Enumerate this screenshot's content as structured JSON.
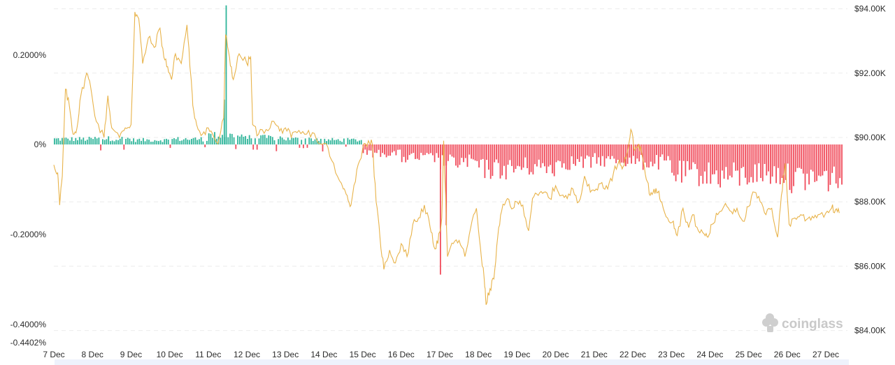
{
  "chart_data": {
    "type": "bar+line",
    "x_categories": [
      "7 Dec",
      "8 Dec",
      "9 Dec",
      "10 Dec",
      "11 Dec",
      "12 Dec",
      "13 Dec",
      "14 Dec",
      "15 Dec",
      "16 Dec",
      "17 Dec",
      "18 Dec",
      "19 Dec",
      "20 Dec",
      "21 Dec",
      "22 Dec",
      "23 Dec",
      "24 Dec",
      "25 Dec",
      "26 Dec",
      "27 Dec"
    ],
    "left_axis": {
      "ticks": [
        "0.2000%",
        "0%",
        "-0.2000%",
        "-0.4000%",
        "-0.4402%"
      ],
      "tick_values": [
        0.2,
        0,
        -0.2,
        -0.4,
        -0.4402
      ],
      "range": [
        -0.4402,
        0.31
      ]
    },
    "right_axis": {
      "ticks": [
        "$94.00K",
        "$92.00K",
        "$90.00K",
        "$88.00K",
        "$86.00K",
        "$84.00K"
      ],
      "tick_values": [
        94000,
        92000,
        90000,
        88000,
        86000,
        84000
      ],
      "range": [
        83650,
        94200
      ]
    },
    "funding_rate_series": {
      "positive_color": "#2fb59a",
      "negative_color": "#f14c5c",
      "daily_typical_percent": [
        0.012,
        0.013,
        0.01,
        0.012,
        0.02,
        0.015,
        0.012,
        0.01,
        -0.02,
        -0.03,
        -0.04,
        -0.055,
        -0.05,
        -0.04,
        -0.035,
        -0.04,
        -0.065,
        -0.07,
        -0.065,
        -0.075,
        -0.075
      ],
      "spikes": [
        {
          "x": 4.45,
          "percent": 0.31
        },
        {
          "x": 4.4,
          "percent": 0.1
        },
        {
          "x": 10.0,
          "percent": -0.29
        },
        {
          "x": 10.15,
          "percent": -0.18
        }
      ]
    },
    "price_series": {
      "color": "#e8b34a",
      "points": [
        [
          0.0,
          89150
        ],
        [
          0.1,
          88900
        ],
        [
          0.15,
          87900
        ],
        [
          0.22,
          88800
        ],
        [
          0.3,
          91500
        ],
        [
          0.4,
          91000
        ],
        [
          0.5,
          90100
        ],
        [
          0.6,
          90300
        ],
        [
          0.7,
          91300
        ],
        [
          0.85,
          92000
        ],
        [
          0.95,
          91600
        ],
        [
          1.1,
          90500
        ],
        [
          1.3,
          90000
        ],
        [
          1.4,
          91300
        ],
        [
          1.5,
          90300
        ],
        [
          1.7,
          90000
        ],
        [
          1.85,
          90300
        ],
        [
          2.0,
          90400
        ],
        [
          2.1,
          93900
        ],
        [
          2.2,
          93700
        ],
        [
          2.3,
          92300
        ],
        [
          2.45,
          93100
        ],
        [
          2.6,
          92800
        ],
        [
          2.75,
          93400
        ],
        [
          2.85,
          92500
        ],
        [
          2.95,
          92200
        ],
        [
          3.05,
          91800
        ],
        [
          3.15,
          92600
        ],
        [
          3.3,
          92300
        ],
        [
          3.45,
          93500
        ],
        [
          3.55,
          91900
        ],
        [
          3.6,
          91000
        ],
        [
          3.7,
          90400
        ],
        [
          3.85,
          90100
        ],
        [
          4.0,
          90300
        ],
        [
          4.15,
          90000
        ],
        [
          4.25,
          89800
        ],
        [
          4.4,
          90600
        ],
        [
          4.45,
          93200
        ],
        [
          4.55,
          92500
        ],
        [
          4.65,
          91800
        ],
        [
          4.8,
          92600
        ],
        [
          5.0,
          92300
        ],
        [
          5.1,
          92500
        ],
        [
          5.15,
          90400
        ],
        [
          5.3,
          90100
        ],
        [
          5.5,
          90250
        ],
        [
          5.7,
          90500
        ],
        [
          5.85,
          90200
        ],
        [
          6.0,
          90300
        ],
        [
          6.15,
          90000
        ],
        [
          6.3,
          90150
        ],
        [
          6.5,
          90100
        ],
        [
          6.7,
          90150
        ],
        [
          6.9,
          89800
        ],
        [
          7.1,
          89700
        ],
        [
          7.3,
          88900
        ],
        [
          7.5,
          88400
        ],
        [
          7.6,
          88200
        ],
        [
          7.7,
          87900
        ],
        [
          7.85,
          89000
        ],
        [
          8.0,
          89650
        ],
        [
          8.15,
          89900
        ],
        [
          8.25,
          89800
        ],
        [
          8.35,
          88000
        ],
        [
          8.45,
          86900
        ],
        [
          8.55,
          85900
        ],
        [
          8.7,
          86500
        ],
        [
          8.85,
          86100
        ],
        [
          9.0,
          86700
        ],
        [
          9.15,
          86300
        ],
        [
          9.3,
          87300
        ],
        [
          9.45,
          87500
        ],
        [
          9.6,
          87900
        ],
        [
          9.75,
          87200
        ],
        [
          9.85,
          86600
        ],
        [
          9.95,
          86700
        ],
        [
          10.05,
          87500
        ],
        [
          10.1,
          89900
        ],
        [
          10.2,
          86300
        ],
        [
          10.35,
          86700
        ],
        [
          10.5,
          86800
        ],
        [
          10.65,
          86300
        ],
        [
          10.8,
          87200
        ],
        [
          10.95,
          87800
        ],
        [
          11.05,
          86600
        ],
        [
          11.15,
          85600
        ],
        [
          11.2,
          84800
        ],
        [
          11.3,
          85300
        ],
        [
          11.4,
          85600
        ],
        [
          11.5,
          86900
        ],
        [
          11.6,
          87700
        ],
        [
          11.75,
          88100
        ],
        [
          11.9,
          87800
        ],
        [
          12.0,
          88000
        ],
        [
          12.15,
          87900
        ],
        [
          12.3,
          87100
        ],
        [
          12.4,
          88100
        ],
        [
          12.55,
          88200
        ],
        [
          12.7,
          88300
        ],
        [
          12.85,
          88100
        ],
        [
          13.0,
          88500
        ],
        [
          13.15,
          88200
        ],
        [
          13.3,
          88100
        ],
        [
          13.45,
          88400
        ],
        [
          13.6,
          88000
        ],
        [
          13.75,
          88800
        ],
        [
          13.9,
          88300
        ],
        [
          14.05,
          88400
        ],
        [
          14.2,
          88600
        ],
        [
          14.35,
          88400
        ],
        [
          14.5,
          88900
        ],
        [
          14.65,
          89300
        ],
        [
          14.75,
          89100
        ],
        [
          14.85,
          89500
        ],
        [
          14.95,
          90250
        ],
        [
          15.05,
          89600
        ],
        [
          15.15,
          89800
        ],
        [
          15.25,
          89400
        ],
        [
          15.35,
          88700
        ],
        [
          15.45,
          88200
        ],
        [
          15.55,
          88400
        ],
        [
          15.65,
          88300
        ],
        [
          15.75,
          88000
        ],
        [
          15.9,
          87500
        ],
        [
          16.05,
          87400
        ],
        [
          16.15,
          86950
        ],
        [
          16.3,
          87800
        ],
        [
          16.45,
          87200
        ],
        [
          16.55,
          87600
        ],
        [
          16.7,
          87100
        ],
        [
          16.85,
          87000
        ],
        [
          16.95,
          86900
        ],
        [
          17.05,
          87300
        ],
        [
          17.2,
          87600
        ],
        [
          17.4,
          87950
        ],
        [
          17.55,
          87700
        ],
        [
          17.7,
          87800
        ],
        [
          17.85,
          87400
        ],
        [
          18.0,
          87850
        ],
        [
          18.15,
          88300
        ],
        [
          18.3,
          88000
        ],
        [
          18.45,
          87600
        ],
        [
          18.6,
          87800
        ],
        [
          18.75,
          86900
        ],
        [
          18.85,
          88200
        ],
        [
          18.95,
          89200
        ],
        [
          19.05,
          87300
        ],
        [
          19.2,
          87500
        ],
        [
          19.35,
          87600
        ],
        [
          19.5,
          87450
        ],
        [
          19.65,
          87550
        ],
        [
          19.8,
          87600
        ],
        [
          20.0,
          87650
        ],
        [
          20.15,
          87800
        ],
        [
          20.25,
          87750
        ],
        [
          20.35,
          87650
        ]
      ]
    }
  },
  "watermark": {
    "text": "coinglass",
    "icon": "coinglass-logo-icon"
  },
  "x_scrollbar": {
    "label": ""
  }
}
